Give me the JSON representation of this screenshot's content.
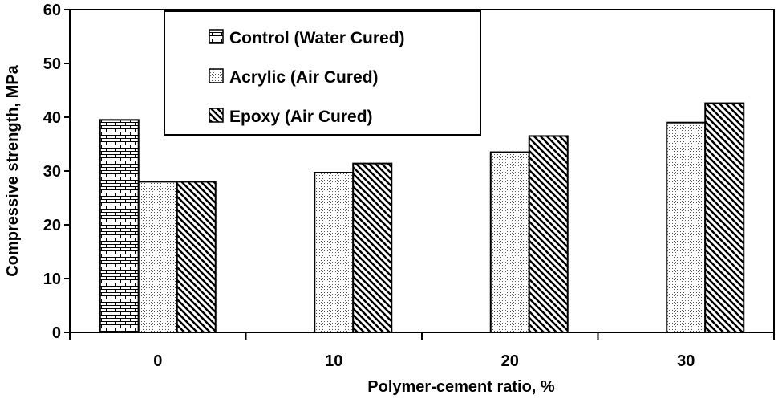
{
  "chart_data": {
    "type": "bar",
    "title": "",
    "xlabel": "Polymer-cement ratio, %",
    "ylabel": "Compressive strength, MPa",
    "categories": [
      "0",
      "10",
      "20",
      "30"
    ],
    "ylim": [
      0,
      60
    ],
    "yticks": [
      "0",
      "10",
      "20",
      "30",
      "40",
      "50",
      "60"
    ],
    "grid": false,
    "legend_position": "top-center",
    "series": [
      {
        "name": "Control (Water Cured)",
        "pattern": "brick",
        "values": [
          39.5,
          null,
          null,
          null
        ]
      },
      {
        "name": "Acrylic (Air Cured)",
        "pattern": "dots",
        "values": [
          28.0,
          29.7,
          33.5,
          39.0
        ]
      },
      {
        "name": "Epoxy (Air Cured)",
        "pattern": "diagonal-hatch",
        "values": [
          28.0,
          31.4,
          36.5,
          42.6
        ]
      }
    ]
  }
}
